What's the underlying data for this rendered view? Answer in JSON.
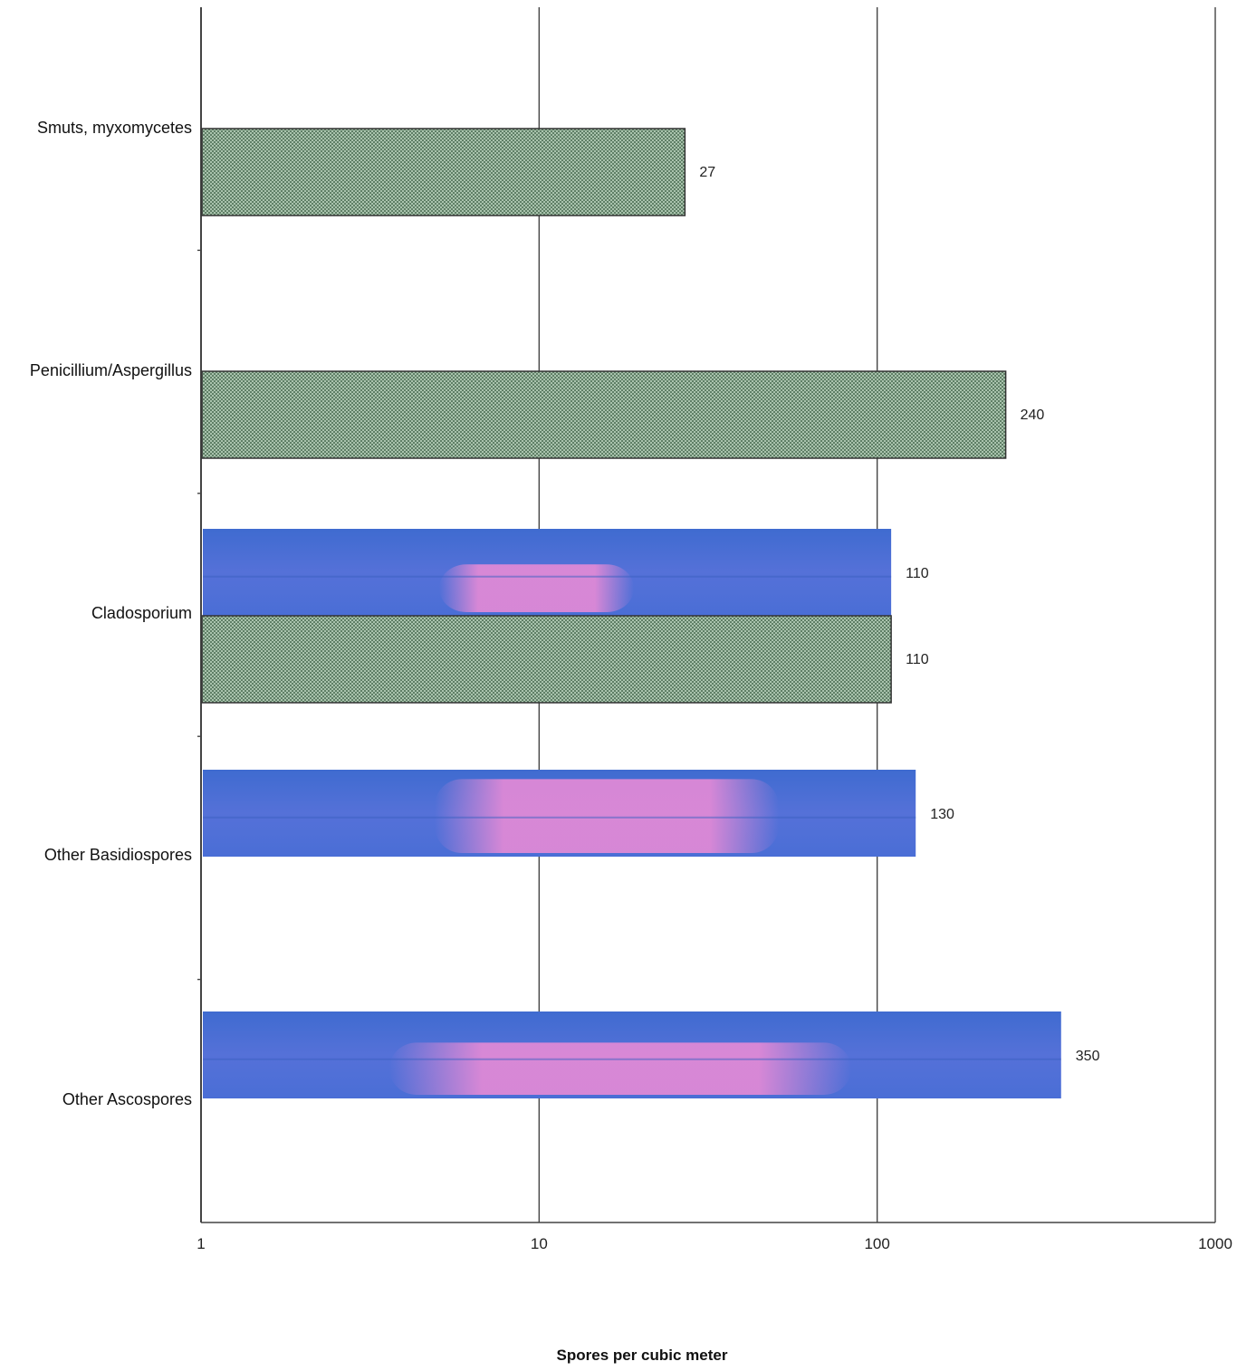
{
  "chart_data": {
    "type": "bar",
    "orientation": "horizontal",
    "x_scale": "log",
    "xlim": [
      1,
      1000
    ],
    "x_ticks": [
      "1",
      "10",
      "100",
      "1000"
    ],
    "xlabel": "Spores per cubic meter",
    "ylabel": "",
    "title": "",
    "grid": "vertical at decades",
    "legend": "none",
    "categories": [
      "Smuts, myxomycetes",
      "Penicillium/Aspergillus",
      "Cladosporium",
      "Other Basidiospores",
      "Other Ascospores"
    ],
    "series": [
      {
        "style": "blue",
        "values": [
          null,
          null,
          110,
          130,
          350
        ],
        "labels": [
          "",
          "",
          "110",
          "130",
          "350"
        ]
      },
      {
        "style": "green-hatched",
        "values": [
          27,
          240,
          110,
          null,
          null
        ],
        "labels": [
          "27",
          "240",
          "110",
          "",
          ""
        ]
      }
    ],
    "colors": {
      "blue": "#4a6ed6",
      "pink": "#e68ad6",
      "green": "#8fae96",
      "green_dark": "#5f7f66",
      "outline": "#333333"
    }
  }
}
